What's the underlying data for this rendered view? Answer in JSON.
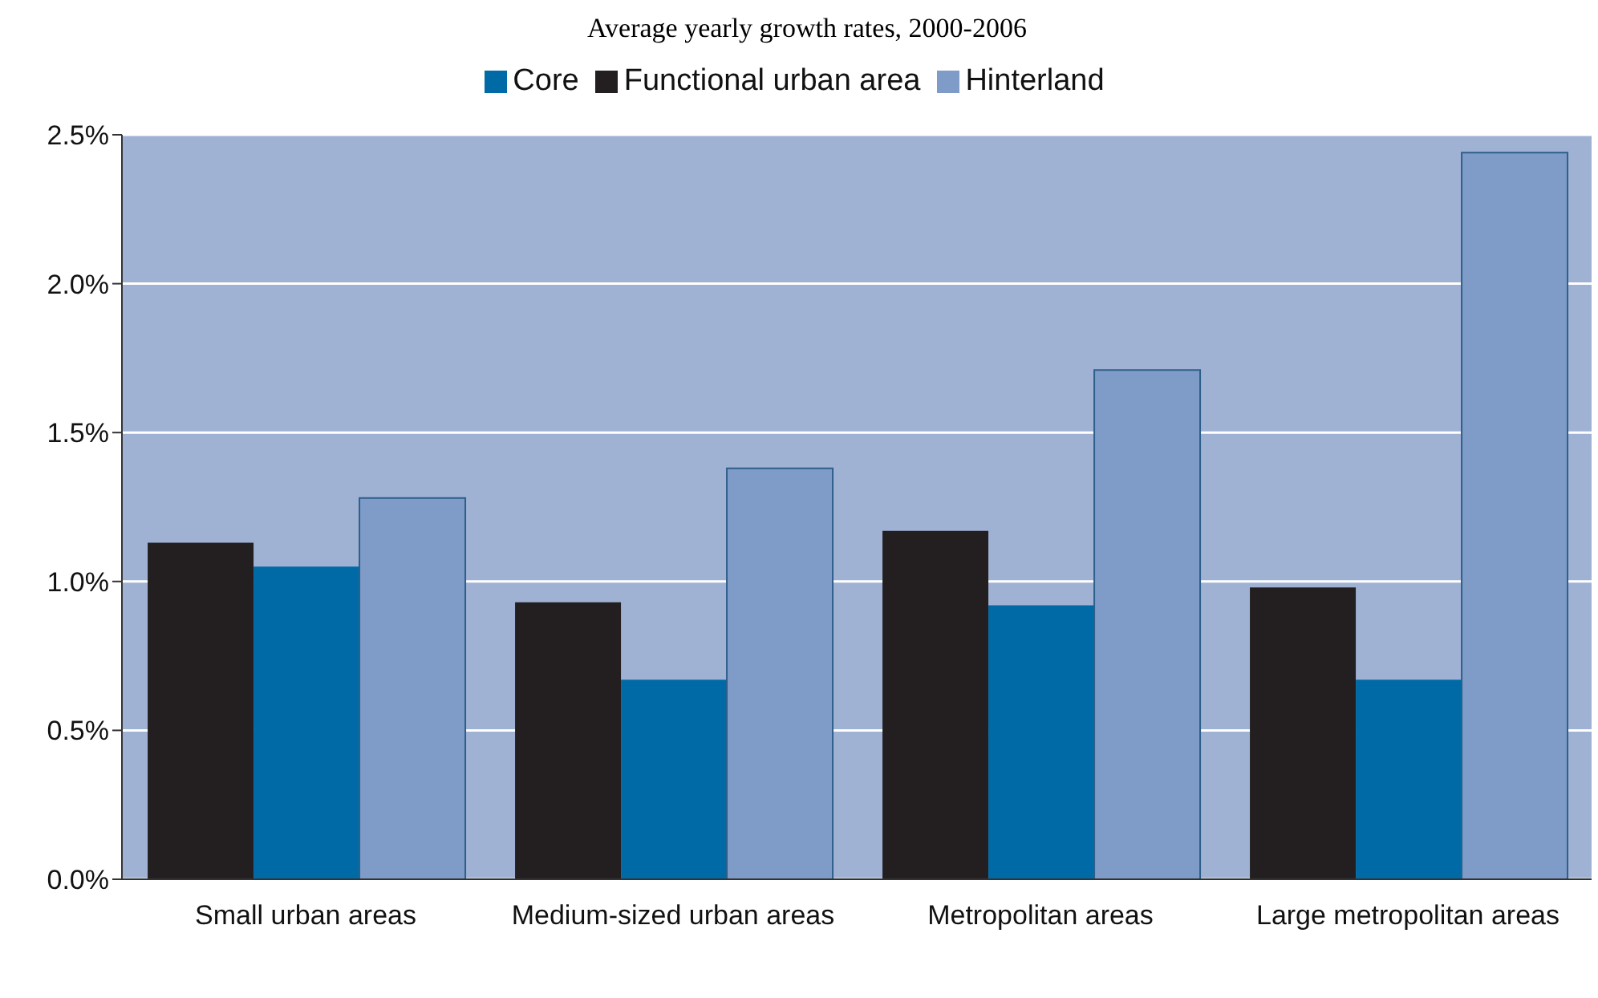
{
  "chart_data": {
    "type": "bar",
    "title": "Average yearly growth rates, 2000-2006",
    "categories": [
      "Small urban areas",
      "Medium-sized urban areas",
      "Metropolitan areas",
      "Large metropolitan areas"
    ],
    "series": [
      {
        "name": "Functional urban area",
        "color": "#231f20",
        "values": [
          1.13,
          0.93,
          1.17,
          0.98
        ]
      },
      {
        "name": "Core",
        "color": "#006aa6",
        "values": [
          1.05,
          0.67,
          0.92,
          0.67
        ]
      },
      {
        "name": "Hinterland",
        "color": "#7f9bc8",
        "values": [
          1.28,
          1.38,
          1.71,
          2.44
        ]
      }
    ],
    "ylim": [
      0,
      2.5
    ],
    "yticks": [
      {
        "value": 0,
        "label": "0.0%"
      },
      {
        "value": 0.5,
        "label": "0.5%"
      },
      {
        "value": 1,
        "label": "1.0%"
      },
      {
        "value": 1.5,
        "label": "1.5%"
      },
      {
        "value": 2,
        "label": "2.0%"
      },
      {
        "value": 2.5,
        "label": "2.5%"
      }
    ],
    "grid": "y",
    "legend": "top"
  }
}
